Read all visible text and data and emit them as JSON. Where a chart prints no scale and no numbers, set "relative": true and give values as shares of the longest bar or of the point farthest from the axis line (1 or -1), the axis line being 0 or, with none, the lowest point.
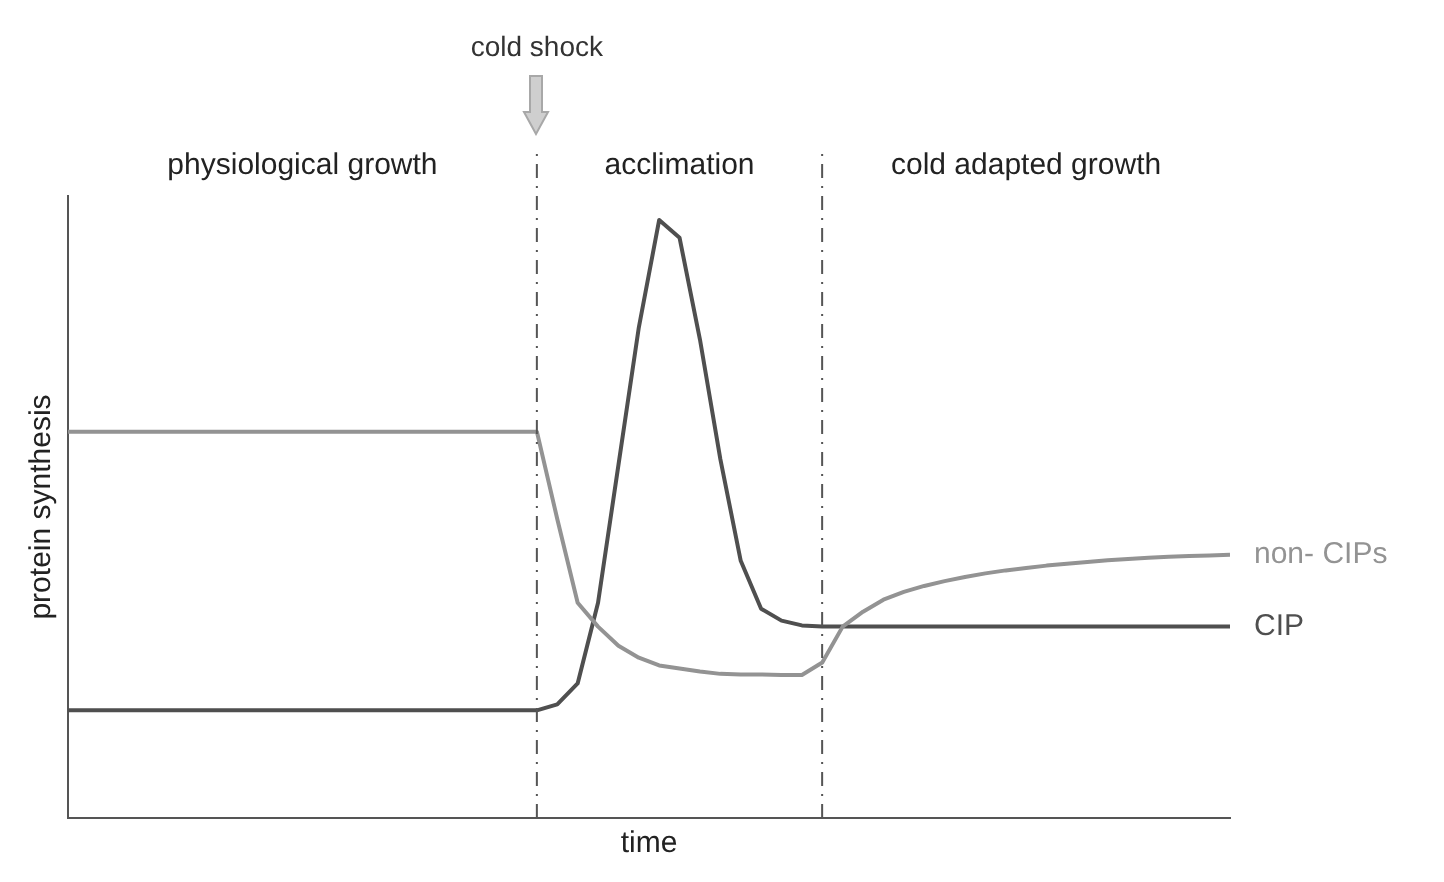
{
  "chart_data": {
    "type": "line",
    "relative": true,
    "xlabel": "time",
    "ylabel": "protein synthesis",
    "grid": false,
    "legend": false,
    "marker": "none",
    "line_style": "solid",
    "categories": [
      null,
      null,
      null,
      null,
      null,
      null,
      null,
      null,
      null,
      null,
      null,
      null,
      null,
      null,
      null,
      null,
      null,
      null,
      null,
      null,
      null,
      null,
      null,
      null,
      null,
      null,
      null,
      null,
      null,
      null,
      null,
      null,
      null,
      null,
      null,
      null,
      null,
      null,
      null,
      null,
      null,
      null,
      null,
      null,
      null,
      null,
      null,
      null,
      null,
      null,
      null,
      null,
      null,
      null,
      null,
      null,
      null,
      null
    ],
    "series": [
      {
        "name": "non- CIPs",
        "color": "#939393",
        "values": [
          0.646,
          0.646,
          0.646,
          0.646,
          0.646,
          0.646,
          0.646,
          0.646,
          0.646,
          0.646,
          0.646,
          0.646,
          0.646,
          0.646,
          0.646,
          0.646,
          0.646,
          0.646,
          0.646,
          0.646,
          0.646,
          0.646,
          0.646,
          0.646,
          0.5,
          0.36,
          0.32,
          0.288,
          0.268,
          0.255,
          0.25,
          0.245,
          0.241,
          0.24,
          0.24,
          0.239,
          0.239,
          0.26,
          0.32,
          0.345,
          0.365,
          0.378,
          0.388,
          0.396,
          0.403,
          0.409,
          0.414,
          0.418,
          0.422,
          0.425,
          0.428,
          0.431,
          0.433,
          0.435,
          0.437,
          0.438,
          0.439,
          0.44
        ]
      },
      {
        "name": "CIP",
        "color": "#4f4f4f",
        "values": [
          0.18,
          0.18,
          0.18,
          0.18,
          0.18,
          0.18,
          0.18,
          0.18,
          0.18,
          0.18,
          0.18,
          0.18,
          0.18,
          0.18,
          0.18,
          0.18,
          0.18,
          0.18,
          0.18,
          0.18,
          0.18,
          0.18,
          0.18,
          0.18,
          0.19,
          0.225,
          0.36,
          0.59,
          0.82,
          1,
          0.97,
          0.8,
          0.6,
          0.43,
          0.35,
          0.33,
          0.322,
          0.32,
          0.32,
          0.32,
          0.32,
          0.32,
          0.32,
          0.32,
          0.32,
          0.32,
          0.32,
          0.32,
          0.32,
          0.32,
          0.32,
          0.32,
          0.32,
          0.32,
          0.32,
          0.32,
          0.32,
          0.32
        ]
      }
    ],
    "annotations": [
      "cold shock",
      "physiological growth",
      "acclimation",
      "cold adapted growth"
    ]
  }
}
